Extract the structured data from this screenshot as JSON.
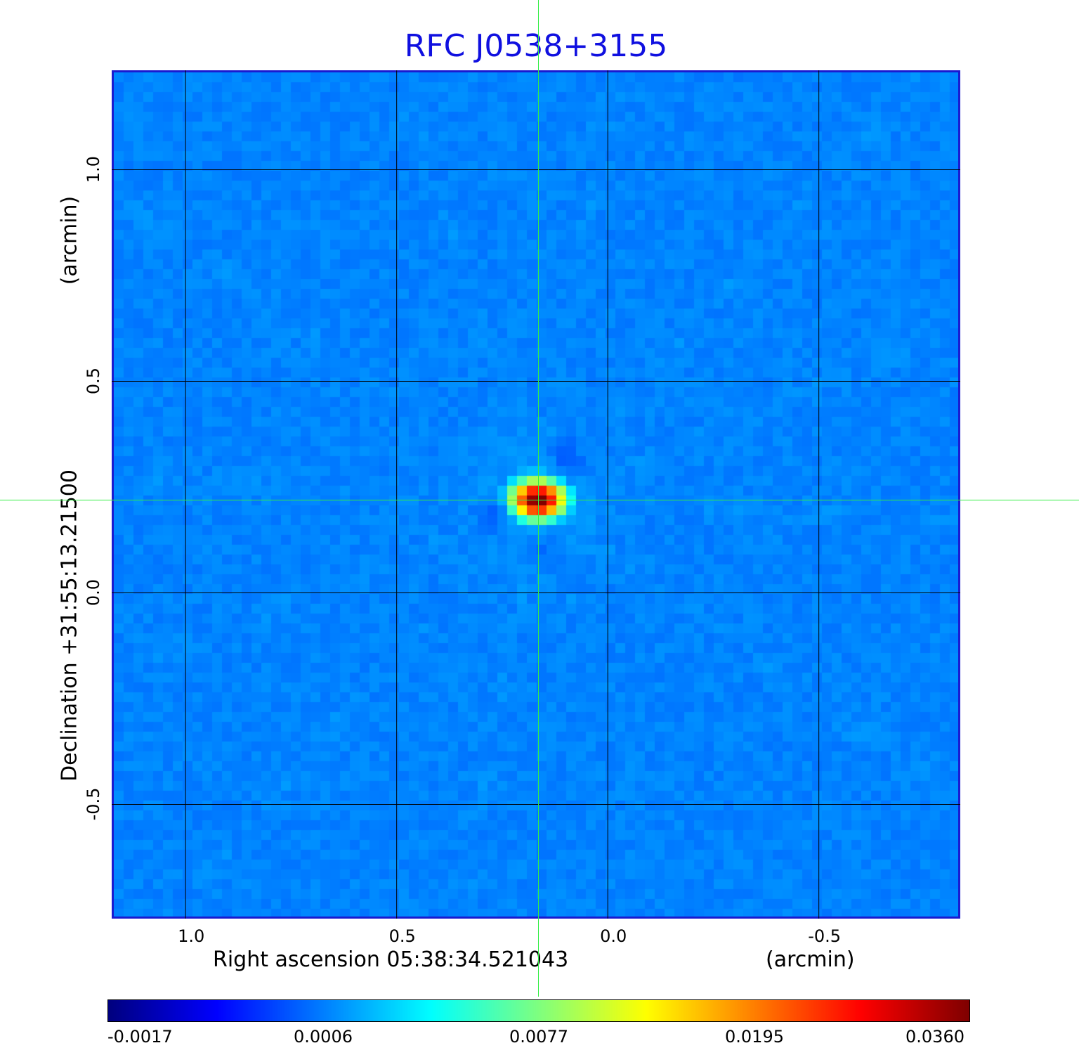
{
  "chart_data": {
    "type": "heatmap",
    "title": "RFC J0538+3155",
    "xlabel": "Right ascension  05:38:34.521043",
    "x_unit": "(arcmin)",
    "ylabel": "Declination  +31:55:13.21500",
    "y_unit": "(arcmin)",
    "x_ticks": [
      "1.0",
      "0.5",
      "0.0",
      "-0.5"
    ],
    "x_tick_values": [
      1.0,
      0.5,
      0.0,
      -0.5
    ],
    "y_ticks": [
      "1.0",
      "0.5",
      "0.0",
      "-0.5"
    ],
    "y_tick_values": [
      1.0,
      0.5,
      0.0,
      -0.5
    ],
    "xlim": [
      1.175,
      -0.835
    ],
    "ylim": [
      -0.77,
      1.235
    ],
    "grid": true,
    "colormap": "jet",
    "colorbar_ticks": [
      "-0.0017",
      "0.0006",
      "0.0077",
      "0.0195",
      "0.0360"
    ],
    "colorbar_tick_values": [
      -0.0017,
      0.0006,
      0.0077,
      0.0195,
      0.036
    ],
    "colorbar_range": [
      -0.0017,
      0.036
    ],
    "peak": {
      "x": 0.165,
      "y": 0.22,
      "value": 0.036
    },
    "crosshair": {
      "x": 0.165,
      "y": 0.22
    },
    "colors": {
      "title": "#1010e0",
      "frame": "#1a1ad0",
      "grid": "#000000",
      "crosshair": "#33ee44"
    }
  }
}
